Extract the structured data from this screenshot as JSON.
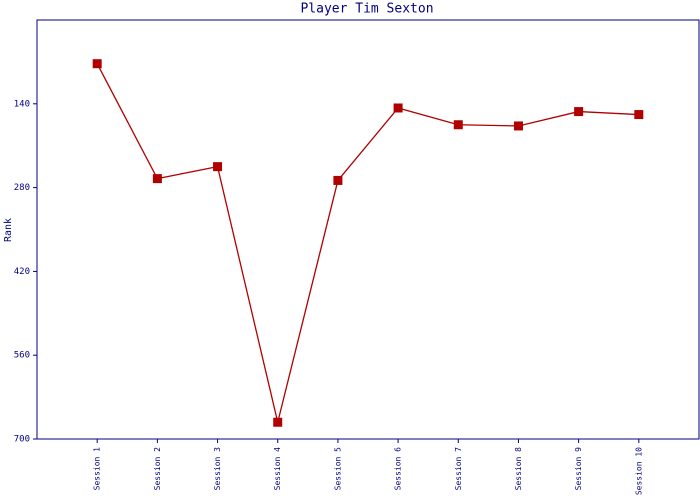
{
  "chart_data": {
    "type": "line",
    "title": "Player Tim Sexton",
    "y_label": "Rank",
    "categories": [
      "Session 1",
      "Session 2",
      "Session 3",
      "Session 4",
      "Session 5",
      "Session 6",
      "Session 7",
      "Session 8",
      "Session 9",
      "Session 10"
    ],
    "series": [
      {
        "name": "Rank",
        "color": "#b00000",
        "values": [
          73,
          265,
          245,
          672,
          268,
          147,
          175,
          177,
          153,
          158
        ]
      }
    ],
    "ylim": [
      0,
      700
    ],
    "yticks": [
      140,
      280,
      420,
      560,
      700
    ],
    "y_inverted": true
  }
}
